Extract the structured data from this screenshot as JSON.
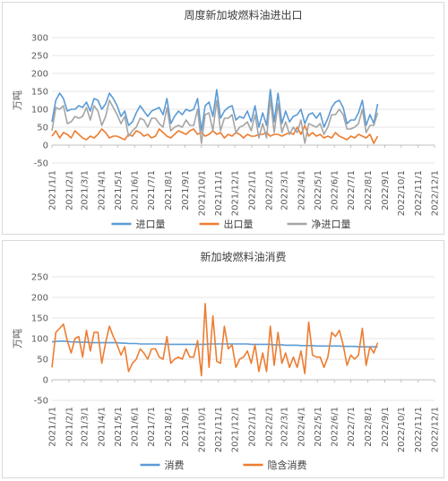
{
  "chart_data": [
    {
      "type": "line",
      "title": "周度新加坡燃料油进出口",
      "ylabel": "万吨",
      "ylim": [
        -50,
        300
      ],
      "yticks": [
        -50,
        0,
        50,
        100,
        150,
        200,
        250,
        300
      ],
      "grid": "horizontal",
      "legend": "bottom",
      "x_tick_labels": [
        "2021/1/1",
        "2021/2/1",
        "2021/3/1",
        "2021/4/1",
        "2021/5/1",
        "2021/6/1",
        "2021/7/1",
        "2021/8/1",
        "2021/9/1",
        "2021/10/1",
        "2021/11/1",
        "2021/12/1",
        "2022/1/1",
        "2022/2/1",
        "2022/3/1",
        "2022/4/1",
        "2022/5/1",
        "2022/6/1",
        "2022/7/1",
        "2022/8/1",
        "2022/9/1",
        "2022/10/1",
        "2022/11/1",
        "2022/12/1"
      ],
      "x_start": "2021-01-01",
      "series": [
        {
          "name": "进口量",
          "color": "#5b9bd5",
          "values": [
            65,
            125,
            145,
            130,
            95,
            100,
            100,
            110,
            105,
            120,
            95,
            130,
            125,
            100,
            115,
            145,
            130,
            110,
            80,
            95,
            55,
            65,
            90,
            110,
            95,
            80,
            95,
            100,
            105,
            85,
            130,
            60,
            80,
            95,
            85,
            100,
            95,
            100,
            130,
            40,
            110,
            120,
            80,
            155,
            75,
            95,
            105,
            110,
            70,
            80,
            75,
            95,
            65,
            110,
            50,
            90,
            55,
            155,
            65,
            145,
            60,
            95,
            65,
            80,
            85,
            100,
            60,
            85,
            90,
            75,
            90,
            50,
            75,
            105,
            120,
            125,
            105,
            60,
            70,
            70,
            90,
            125,
            55,
            85,
            60,
            115
          ]
        },
        {
          "name": "出口量",
          "color": "#ed7d31",
          "values": [
            25,
            40,
            20,
            35,
            30,
            20,
            40,
            30,
            20,
            15,
            25,
            20,
            30,
            45,
            35,
            20,
            25,
            25,
            20,
            15,
            30,
            25,
            40,
            35,
            25,
            30,
            20,
            25,
            45,
            35,
            25,
            20,
            30,
            40,
            35,
            30,
            40,
            45,
            30,
            35,
            25,
            30,
            40,
            30,
            35,
            20,
            30,
            25,
            35,
            30,
            20,
            30,
            25,
            25,
            30,
            30,
            35,
            25,
            30,
            30,
            25,
            30,
            35,
            30,
            50,
            30,
            55,
            25,
            35,
            25,
            30,
            20,
            25,
            20,
            35,
            25,
            20,
            15,
            25,
            20,
            30,
            25,
            20,
            30,
            5,
            25
          ]
        },
        {
          "name": "净进口量",
          "color": "#a5a5a5",
          "values": [
            40,
            105,
            100,
            110,
            60,
            65,
            80,
            75,
            80,
            105,
            70,
            110,
            95,
            55,
            80,
            125,
            105,
            85,
            60,
            80,
            25,
            40,
            50,
            75,
            70,
            50,
            75,
            75,
            60,
            50,
            105,
            40,
            50,
            55,
            50,
            70,
            55,
            55,
            100,
            5,
            85,
            90,
            40,
            125,
            40,
            75,
            75,
            85,
            35,
            50,
            55,
            65,
            40,
            85,
            20,
            60,
            20,
            130,
            35,
            115,
            35,
            65,
            30,
            50,
            35,
            70,
            5,
            60,
            55,
            50,
            60,
            30,
            50,
            85,
            85,
            100,
            85,
            45,
            45,
            50,
            60,
            100,
            35,
            55,
            55,
            90
          ]
        }
      ]
    },
    {
      "type": "line",
      "title": "新加坡燃料油消费",
      "ylabel": "万吨",
      "ylim": [
        -50,
        250
      ],
      "yticks": [
        -50,
        0,
        50,
        100,
        150,
        200,
        250
      ],
      "grid": "horizontal",
      "legend": "bottom",
      "x_tick_labels": [
        "2021/1/1",
        "2021/2/1",
        "2021/3/1",
        "2021/4/1",
        "2021/5/1",
        "2021/6/1",
        "2021/7/1",
        "2021/8/1",
        "2021/9/1",
        "2021/10/1",
        "2021/11/1",
        "2021/12/1",
        "2022/1/1",
        "2022/2/1",
        "2022/3/1",
        "2022/4/1",
        "2022/5/1",
        "2022/6/1",
        "2022/7/1",
        "2022/8/1",
        "2022/9/1",
        "2022/10/1",
        "2022/11/1",
        "2022/12/1"
      ],
      "x_start": "2021-01-01",
      "series": [
        {
          "name": "消费",
          "color": "#5b9bd5",
          "values": [
            92,
            93,
            94,
            94,
            93,
            92,
            92,
            91,
            91,
            91,
            90,
            90,
            90,
            90,
            90,
            90,
            90,
            90,
            89,
            89,
            88,
            88,
            88,
            87,
            87,
            87,
            87,
            87,
            87,
            87,
            86,
            86,
            86,
            86,
            86,
            86,
            86,
            86,
            86,
            86,
            86,
            87,
            87,
            87,
            87,
            87,
            87,
            87,
            87,
            87,
            87,
            87,
            86,
            86,
            86,
            86,
            86,
            86,
            85,
            85,
            85,
            84,
            84,
            84,
            84,
            83,
            83,
            83,
            83,
            82,
            82,
            82,
            82,
            82,
            82,
            82,
            81,
            81,
            81,
            81,
            80,
            80,
            80,
            80,
            80,
            80
          ]
        },
        {
          "name": "隐含消费",
          "color": "#ed7d31",
          "values": [
            30,
            115,
            125,
            135,
            95,
            65,
            100,
            105,
            55,
            120,
            70,
            115,
            115,
            40,
            90,
            130,
            105,
            85,
            60,
            80,
            20,
            40,
            50,
            75,
            65,
            50,
            75,
            75,
            55,
            50,
            105,
            40,
            50,
            55,
            50,
            75,
            55,
            55,
            95,
            10,
            185,
            30,
            155,
            45,
            40,
            130,
            75,
            85,
            30,
            50,
            55,
            70,
            40,
            85,
            20,
            65,
            20,
            130,
            35,
            115,
            40,
            65,
            30,
            55,
            30,
            70,
            15,
            140,
            60,
            55,
            55,
            30,
            55,
            115,
            105,
            120,
            85,
            35,
            60,
            50,
            60,
            125,
            35,
            80,
            65,
            90
          ]
        }
      ]
    }
  ]
}
